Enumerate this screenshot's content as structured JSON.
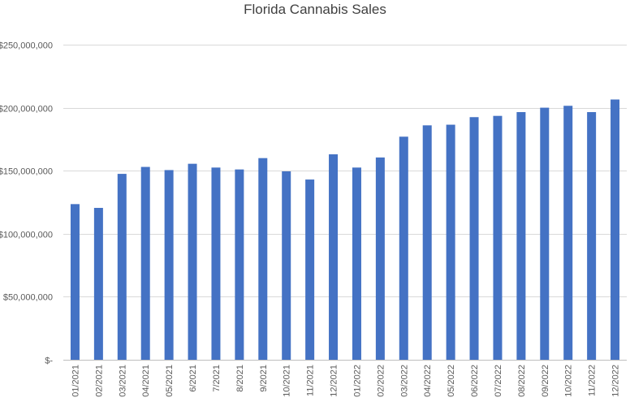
{
  "chart_data": {
    "type": "bar",
    "title": "Florida Cannabis Sales",
    "xlabel": "",
    "ylabel": "",
    "ylim": [
      0,
      250000000
    ],
    "y_ticks": [
      0,
      50000000,
      100000000,
      150000000,
      200000000,
      250000000
    ],
    "y_tick_labels": [
      "$-",
      "$50,000,000",
      "$100,000,000",
      "$150,000,000",
      "$200,000,000",
      "$250,000,000"
    ],
    "grid": true,
    "legend": "none",
    "color": "#4472c4",
    "categories": [
      "01/2021",
      "02/2021",
      "03/2021",
      "04/2021",
      "05/2021",
      "6/2021",
      "7/2021",
      "8/2021",
      "9/2021",
      "10/2021",
      "11/2021",
      "12/2021",
      "01/2022",
      "02/2022",
      "03/2022",
      "04/2022",
      "05/2022",
      "06/2022",
      "07/2022",
      "08/2022",
      "09/2022",
      "10/2022",
      "11/2022",
      "12/2022"
    ],
    "values": [
      123500000,
      120500000,
      147500000,
      153000000,
      150500000,
      155500000,
      152500000,
      151000000,
      160000000,
      149500000,
      143000000,
      163000000,
      152500000,
      160500000,
      177000000,
      186000000,
      186500000,
      192500000,
      193500000,
      196500000,
      200000000,
      201500000,
      196500000,
      206500000
    ]
  }
}
